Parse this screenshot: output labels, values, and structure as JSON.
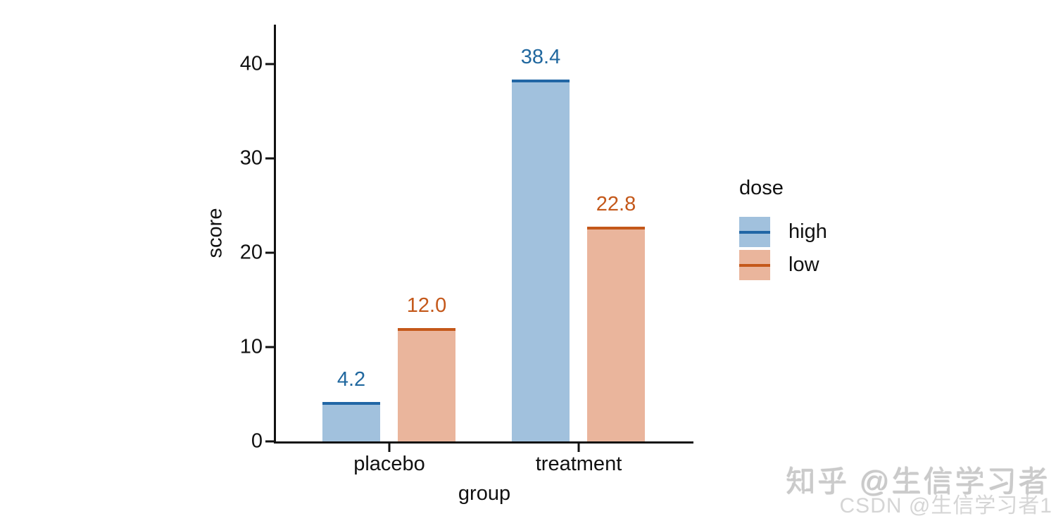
{
  "chart_data": {
    "type": "bar",
    "title": "",
    "xlabel": "group",
    "ylabel": "score",
    "categories": [
      "placebo",
      "treatment"
    ],
    "series": [
      {
        "name": "high",
        "values": [
          4.2,
          38.4
        ],
        "labels": [
          "4.2",
          "38.4"
        ],
        "fill": "#a1c1dd",
        "line": "#2166a5",
        "label_color": "#21689f"
      },
      {
        "name": "low",
        "values": [
          12.0,
          22.8
        ],
        "labels": [
          "12.0",
          "22.8"
        ],
        "fill": "#eab59c",
        "line": "#c4581a",
        "label_color": "#c4581a"
      }
    ],
    "yticks": [
      0,
      10,
      20,
      30,
      40
    ],
    "ytick_labels": [
      "0",
      "10",
      "20",
      "30",
      "40"
    ],
    "ylim": [
      0,
      44.2
    ],
    "grid": false,
    "axis_color": "#111111",
    "legend": {
      "title": "dose",
      "entries": [
        "high",
        "low"
      ],
      "position": "right"
    }
  },
  "watermarks": {
    "zhihu": "知乎 @生信学习者",
    "csdn": "CSDN @生信学习者1"
  }
}
